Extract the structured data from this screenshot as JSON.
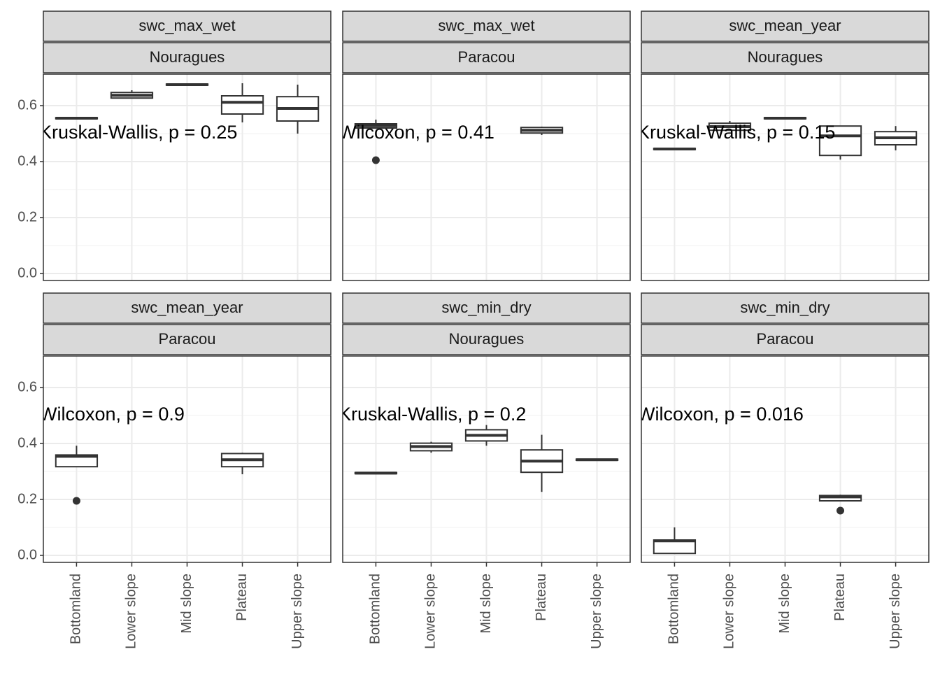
{
  "chart_data": [
    {
      "type": "box",
      "strips": [
        "swc_max_wet",
        "Nouragues"
      ],
      "annotation": "Kruskal-Wallis, p = 0.25",
      "categories": [
        "Bottomland",
        "Lower slope",
        "Mid slope",
        "Plateau",
        "Upper slope"
      ],
      "values": [
        {
          "min": 0.553,
          "q1": 0.553,
          "median": 0.555,
          "q3": 0.557,
          "max": 0.557,
          "outliers": []
        },
        {
          "min": 0.627,
          "q1": 0.627,
          "median": 0.637,
          "q3": 0.647,
          "max": 0.655,
          "outliers": []
        },
        {
          "min": 0.673,
          "q1": 0.673,
          "median": 0.675,
          "q3": 0.677,
          "max": 0.677,
          "outliers": []
        },
        {
          "min": 0.54,
          "q1": 0.57,
          "median": 0.612,
          "q3": 0.635,
          "max": 0.68,
          "outliers": []
        },
        {
          "min": 0.5,
          "q1": 0.545,
          "median": 0.59,
          "q3": 0.632,
          "max": 0.675,
          "outliers": []
        }
      ],
      "color": "#333333",
      "ylim": [
        -0.025,
        0.7125
      ],
      "yticks": [
        {
          "value": 0,
          "label": "0.0"
        },
        0.2,
        0.4,
        0.6
      ],
      "grid": true
    },
    {
      "type": "box",
      "strips": [
        "swc_max_wet",
        "Paracou"
      ],
      "annotation": "Wilcoxon, p = 0.41",
      "categories": [
        "Bottomland",
        "Lower slope",
        "Mid slope",
        "Plateau",
        "Upper slope"
      ],
      "values": [
        {
          "min": 0.52,
          "q1": 0.52,
          "median": 0.528,
          "q3": 0.535,
          "max": 0.55,
          "outliers": [
            0.405
          ]
        },
        null,
        null,
        {
          "min": 0.495,
          "q1": 0.502,
          "median": 0.512,
          "q3": 0.522,
          "max": 0.525,
          "outliers": []
        },
        null
      ],
      "color": "#333333",
      "ylim": [
        -0.025,
        0.7125
      ],
      "yticks": [
        {
          "value": 0,
          "label": "0.0"
        },
        0.2,
        0.4,
        0.6
      ],
      "grid": true
    },
    {
      "type": "box",
      "strips": [
        "swc_mean_year",
        "Nouragues"
      ],
      "annotation": "Kruskal-Wallis, p = 0.15",
      "categories": [
        "Bottomland",
        "Lower slope",
        "Mid slope",
        "Plateau",
        "Upper slope"
      ],
      "values": [
        {
          "min": 0.443,
          "q1": 0.443,
          "median": 0.445,
          "q3": 0.447,
          "max": 0.447,
          "outliers": []
        },
        {
          "min": 0.512,
          "q1": 0.512,
          "median": 0.525,
          "q3": 0.537,
          "max": 0.545,
          "outliers": []
        },
        {
          "min": 0.553,
          "q1": 0.553,
          "median": 0.555,
          "q3": 0.557,
          "max": 0.557,
          "outliers": []
        },
        {
          "min": 0.407,
          "q1": 0.422,
          "median": 0.492,
          "q3": 0.527,
          "max": 0.527,
          "outliers": []
        },
        {
          "min": 0.44,
          "q1": 0.46,
          "median": 0.485,
          "q3": 0.507,
          "max": 0.527,
          "outliers": []
        }
      ],
      "color": "#333333",
      "ylim": [
        -0.025,
        0.7125
      ],
      "yticks": [
        {
          "value": 0,
          "label": "0.0"
        },
        0.2,
        0.4,
        0.6
      ],
      "grid": true
    },
    {
      "type": "box",
      "strips": [
        "swc_mean_year",
        "Paracou"
      ],
      "annotation": "Wilcoxon, p = 0.9",
      "categories": [
        "Bottomland",
        "Lower slope",
        "Mid slope",
        "Plateau",
        "Upper slope"
      ],
      "values": [
        {
          "min": 0.317,
          "q1": 0.317,
          "median": 0.354,
          "q3": 0.359,
          "max": 0.392,
          "outliers": [
            0.195
          ]
        },
        null,
        null,
        {
          "min": 0.29,
          "q1": 0.317,
          "median": 0.342,
          "q3": 0.364,
          "max": 0.367,
          "outliers": []
        },
        null
      ],
      "color": "#333333",
      "ylim": [
        -0.025,
        0.7125
      ],
      "yticks": [
        {
          "value": 0,
          "label": "0.0"
        },
        0.2,
        0.4,
        0.6
      ],
      "grid": true
    },
    {
      "type": "box",
      "strips": [
        "swc_min_dry",
        "Nouragues"
      ],
      "annotation": "Kruskal-Wallis, p = 0.2",
      "categories": [
        "Bottomland",
        "Lower slope",
        "Mid slope",
        "Plateau",
        "Upper slope"
      ],
      "values": [
        {
          "min": 0.292,
          "q1": 0.292,
          "median": 0.294,
          "q3": 0.296,
          "max": 0.296,
          "outliers": []
        },
        {
          "min": 0.367,
          "q1": 0.374,
          "median": 0.389,
          "q3": 0.401,
          "max": 0.406,
          "outliers": []
        },
        {
          "min": 0.392,
          "q1": 0.409,
          "median": 0.429,
          "q3": 0.449,
          "max": 0.466,
          "outliers": []
        },
        {
          "min": 0.227,
          "q1": 0.297,
          "median": 0.337,
          "q3": 0.377,
          "max": 0.431,
          "outliers": []
        },
        {
          "min": 0.34,
          "q1": 0.34,
          "median": 0.342,
          "q3": 0.344,
          "max": 0.344,
          "outliers": []
        }
      ],
      "color": "#333333",
      "ylim": [
        -0.025,
        0.7125
      ],
      "yticks": [
        {
          "value": 0,
          "label": "0.0"
        },
        0.2,
        0.4,
        0.6
      ],
      "grid": true
    },
    {
      "type": "box",
      "strips": [
        "swc_min_dry",
        "Paracou"
      ],
      "annotation": "Wilcoxon, p = 0.016",
      "categories": [
        "Bottomland",
        "Lower slope",
        "Mid slope",
        "Plateau",
        "Upper slope"
      ],
      "values": [
        {
          "min": 0.007,
          "q1": 0.007,
          "median": 0.052,
          "q3": 0.055,
          "max": 0.1,
          "outliers": []
        },
        null,
        null,
        {
          "min": 0.195,
          "q1": 0.195,
          "median": 0.209,
          "q3": 0.214,
          "max": 0.217,
          "outliers": [
            0.16
          ]
        },
        null
      ],
      "color": "#333333",
      "ylim": [
        -0.025,
        0.7125
      ],
      "yticks": [
        {
          "value": 0,
          "label": "0.0"
        },
        0.2,
        0.4,
        0.6
      ],
      "grid": true
    }
  ]
}
